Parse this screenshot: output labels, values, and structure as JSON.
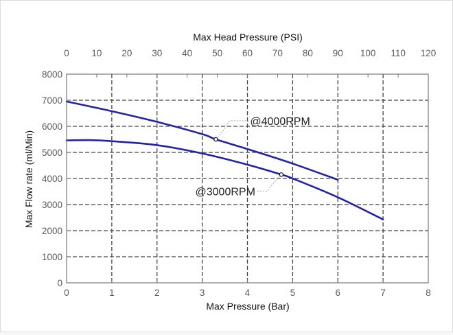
{
  "chart_data": {
    "type": "line",
    "title": "",
    "xlabel": "Max Pressure (Bar)",
    "ylabel": "Max Flow rate (ml/Min)",
    "x2label": "Max Head Pressure (PSI)",
    "xlim": [
      0,
      8
    ],
    "ylim": [
      0,
      8000
    ],
    "x2lim": [
      0,
      120
    ],
    "x_ticks": [
      "0",
      "1",
      "2",
      "3",
      "4",
      "5",
      "6",
      "7",
      "8"
    ],
    "y_ticks": [
      "0",
      "1000",
      "2000",
      "3000",
      "4000",
      "5000",
      "6000",
      "7000",
      "8000"
    ],
    "x2_ticks": [
      "0",
      "10",
      "20",
      "30",
      "40",
      "50",
      "60",
      "70",
      "80",
      "90",
      "100",
      "110",
      "120"
    ],
    "grid": true,
    "series": [
      {
        "name": "@4000RPM",
        "x": [
          0,
          1,
          2,
          3,
          3.3,
          4,
          5,
          6
        ],
        "y": [
          6950,
          6580,
          6170,
          5700,
          5500,
          5130,
          4570,
          3950
        ],
        "marker": {
          "x": 3.3,
          "y": 5500
        }
      },
      {
        "name": "@3000RPM",
        "x": [
          0,
          0.5,
          1,
          2,
          3,
          4,
          4.75,
          5,
          6,
          7
        ],
        "y": [
          5460,
          5470,
          5430,
          5280,
          4960,
          4530,
          4150,
          4000,
          3280,
          2430
        ],
        "marker": {
          "x": 4.75,
          "y": 4150
        }
      }
    ],
    "colors": {
      "series": "#2222aa",
      "grid": "#444444",
      "axis": "#777777"
    }
  }
}
